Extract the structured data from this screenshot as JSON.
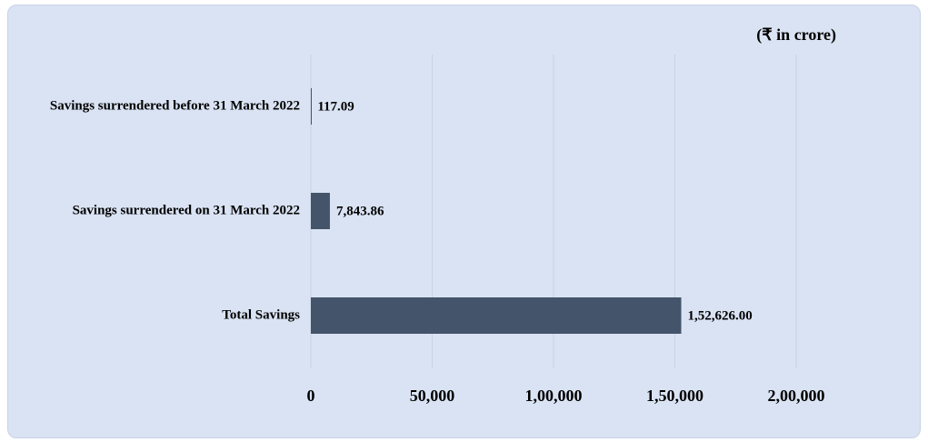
{
  "chart_data": {
    "type": "bar",
    "orientation": "horizontal",
    "subtitle": "(₹ in crore)",
    "categories": [
      "Savings surrendered before 31 March 2022",
      "Savings surrendered on 31 March 2022",
      "Total Savings"
    ],
    "values": [
      117.09,
      7843.86,
      152626.0
    ],
    "value_labels": [
      "117.09",
      "7,843.86",
      "1,52,626.00"
    ],
    "color": "#44546a",
    "xlim": [
      0,
      200000
    ],
    "xticks": [
      0,
      {
        "value": 50000,
        "label": "50,000"
      },
      {
        "value": 100000,
        "label": "1,00,000"
      },
      {
        "value": 150000,
        "label": "1,50,000"
      },
      {
        "value": 200000,
        "label": "2,00,000"
      }
    ],
    "grid": true
  }
}
